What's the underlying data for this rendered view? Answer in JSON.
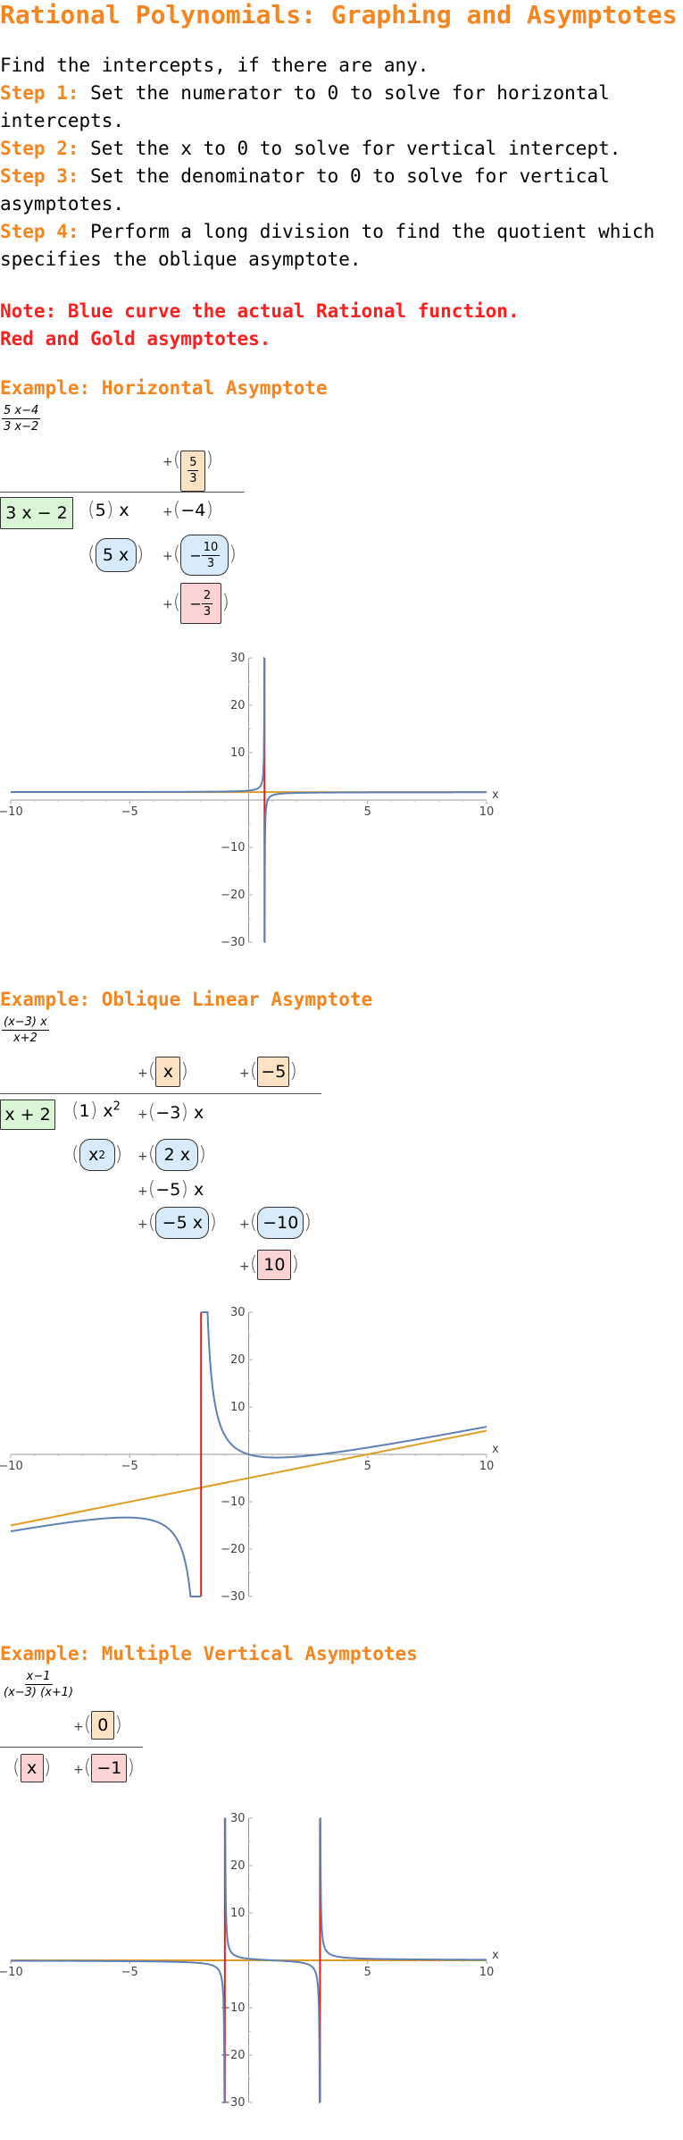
{
  "title": "Rational Polynomials: Graphing and Asymptotes",
  "intro": "Find the intercepts, if there are any.",
  "steps": [
    {
      "label": "Step 1:",
      "text": " Set the numerator to 0 to solve for horizontal intercepts."
    },
    {
      "label": "Step 2:",
      "text": " Set the x to 0 to solve for vertical intercept."
    },
    {
      "label": "Step 3:",
      "text": " Set the denominator to 0 to solve for vertical asymptotes."
    },
    {
      "label": "Step 4:",
      "text": " Perform a long division to find the quotient which specifies the oblique asymptote."
    }
  ],
  "note": [
    "Note: Blue curve the actual Rational function.",
    "Red and Gold asymptotes."
  ],
  "examples": [
    {
      "title": "Example: Horizontal Asymptote",
      "function_num": "5 x−4",
      "function_den": "3 x−2",
      "divisor": "3 x − 2",
      "quotient": {
        "num": "5",
        "den": "3"
      },
      "dividend": {
        "lead": "5",
        "var": "x",
        "const": "−4"
      },
      "subtract": "5 x",
      "sub2": {
        "sign": "−",
        "num": "10",
        "den": "3"
      },
      "remainder": {
        "sign": "−",
        "num": "2",
        "den": "3"
      }
    },
    {
      "title": "Example: Oblique Linear Asymptote",
      "function_num": "(x−3) x",
      "function_den": "x+2",
      "divisor": "x + 2",
      "quotient": [
        "x",
        "−5"
      ],
      "dividend": {
        "lead": "1",
        "var": "x",
        "pow": "2",
        "mid": "−3",
        "var2": "x"
      },
      "row_a": [
        "x",
        "2",
        "2 x"
      ],
      "row_b": [
        "−5",
        "x"
      ],
      "row_c": [
        "−5 x",
        "−10"
      ],
      "remainder": "10"
    },
    {
      "title": "Example: Multiple Vertical Asymptotes",
      "function_num": "x−1",
      "function_den": "(x−3)  (x+1)",
      "quotient": "0",
      "row": [
        "x",
        "−1"
      ]
    }
  ],
  "plus": "+",
  "graph_labels": {
    "x": "x"
  },
  "chart_data": [
    {
      "type": "line",
      "title": "",
      "xlim": [
        -10,
        10
      ],
      "ylim": [
        -30,
        30
      ],
      "xticks": [
        -10,
        -5,
        5,
        10
      ],
      "yticks": [
        -30,
        -20,
        -10,
        10,
        20,
        30
      ],
      "series": [
        {
          "values": "(5x-4)/(3x-2)",
          "color": "#5e81b5"
        },
        {
          "values": "y=5/3",
          "color": "#e19c24"
        },
        {
          "values": "x=2/3",
          "color": "#e0201b"
        }
      ]
    },
    {
      "type": "line",
      "title": "",
      "xlim": [
        -10,
        10
      ],
      "ylim": [
        -30,
        30
      ],
      "xticks": [
        -10,
        -5,
        5,
        10
      ],
      "yticks": [
        -30,
        -20,
        -10,
        10,
        20,
        30
      ],
      "series": [
        {
          "values": "(x-3)x/(x+2)",
          "color": "#5e81b5"
        },
        {
          "values": "y=x-5",
          "color": "#e19c24"
        },
        {
          "values": "x=-2",
          "color": "#e0201b"
        }
      ]
    },
    {
      "type": "line",
      "title": "",
      "xlim": [
        -10,
        10
      ],
      "ylim": [
        -30,
        30
      ],
      "xticks": [
        -10,
        -5,
        5,
        10
      ],
      "yticks": [
        -30,
        -20,
        -10,
        10,
        20,
        30
      ],
      "series": [
        {
          "values": "(x-1)/((x-3)(x+1))",
          "color": "#5e81b5"
        },
        {
          "values": "y=0",
          "color": "#e19c24"
        },
        {
          "values": "x=-1",
          "color": "#e0201b"
        },
        {
          "values": "x=3",
          "color": "#e0201b"
        }
      ]
    }
  ]
}
